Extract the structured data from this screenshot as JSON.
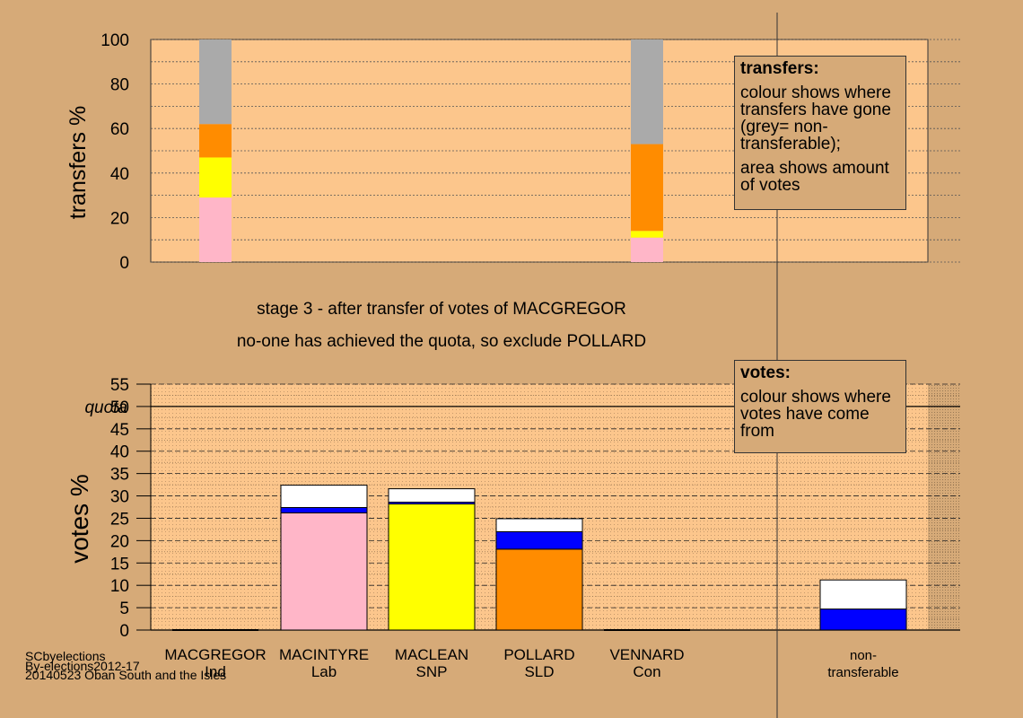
{
  "chart_data": [
    {
      "type": "bar",
      "title": "",
      "ylabel": "transfers %",
      "ylim": [
        0,
        100
      ],
      "yticks": [
        0,
        20,
        40,
        60,
        80,
        100
      ],
      "columns": [
        {
          "candidate": "MACGREGOR",
          "segments": [
            {
              "from": 0,
              "to": 29,
              "color": "#ffb6c8"
            },
            {
              "from": 29,
              "to": 47,
              "color": "#ffff00"
            },
            {
              "from": 47,
              "to": 62,
              "color": "#ff8c00"
            },
            {
              "from": 62,
              "to": 100,
              "color": "#aaaaaa"
            }
          ]
        },
        {
          "candidate": "POLLARD",
          "segments": [
            {
              "from": 0,
              "to": 11,
              "color": "#ffb6c8"
            },
            {
              "from": 11,
              "to": 14,
              "color": "#ffff00"
            },
            {
              "from": 14,
              "to": 53,
              "color": "#ff8c00"
            },
            {
              "from": 53,
              "to": 100,
              "color": "#aaaaaa"
            }
          ]
        }
      ]
    },
    {
      "type": "bar",
      "title": "",
      "ylabel": "votes %",
      "ylim": [
        0,
        55
      ],
      "yticks": [
        0,
        5,
        10,
        15,
        20,
        25,
        30,
        35,
        40,
        45,
        50,
        55
      ],
      "quota": 50,
      "quota_label": "quota",
      "categories": [
        {
          "name": "MACGREGOR",
          "party": "Ind"
        },
        {
          "name": "MACINTYRE",
          "party": "Lab"
        },
        {
          "name": "MACLEAN",
          "party": "SNP"
        },
        {
          "name": "POLLARD",
          "party": "SLD"
        },
        {
          "name": "VENNARD",
          "party": "Con"
        },
        {
          "name": "non-",
          "party": "transferable"
        }
      ],
      "stacks": [
        [],
        [
          {
            "value": 26.2,
            "color": "#ffb6c8"
          },
          {
            "value": 1.2,
            "color": "#0000ff"
          },
          {
            "value": 5.0,
            "color": "#ffffff"
          }
        ],
        [
          {
            "value": 28.2,
            "color": "#ffff00"
          },
          {
            "value": 0.4,
            "color": "#0000ff"
          },
          {
            "value": 3.0,
            "color": "#ffffff"
          }
        ],
        [
          {
            "value": 18.1,
            "color": "#ff8c00"
          },
          {
            "value": 3.9,
            "color": "#0000ff"
          },
          {
            "value": 2.9,
            "color": "#ffffff"
          }
        ],
        [],
        [
          {
            "value": 4.7,
            "color": "#0000ff"
          },
          {
            "value": 6.5,
            "color": "#ffffff"
          }
        ]
      ]
    }
  ],
  "legend_transfers": {
    "title": "transfers:",
    "text1": "colour shows where transfers have gone (grey= non-transferable);",
    "text2": "area shows amount of votes"
  },
  "legend_votes": {
    "title": "votes:",
    "text1": "colour shows where votes have come from"
  },
  "stage_line1": "stage 3 - after transfer of votes of MACGREGOR",
  "stage_line2": "no-one has achieved the quota, so exclude POLLARD",
  "credit": {
    "line1": "SCbyelections",
    "line2": "By-elections2012-17",
    "line3": "20140523 Oban South and the Isles"
  }
}
